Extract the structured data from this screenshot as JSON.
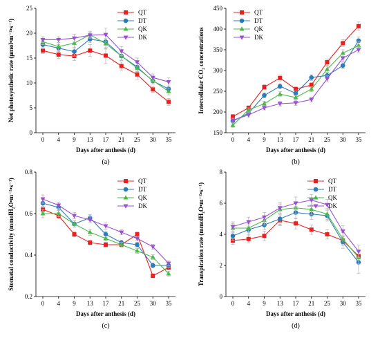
{
  "colors": {
    "QT": "#e8201e",
    "DT": "#2b7bba",
    "QK": "#4cb848",
    "DK": "#9b4fd1",
    "error": "#b8b8b8"
  },
  "chart_data": [
    {
      "id": "a",
      "type": "line",
      "panel_label": "(a)",
      "xlabel": "Days after anthesis (d)",
      "ylabel": "Net photosynthetic rate (μmol•m⁻²•s⁻¹)",
      "categories": [
        "0",
        "4",
        "9",
        "13",
        "17",
        "21",
        "25",
        "30",
        "35"
      ],
      "ylim": [
        0,
        25
      ],
      "yticks": [
        "0",
        "5",
        "10",
        "15",
        "20",
        "25"
      ],
      "legend_position": "top-right",
      "grid": false,
      "series": [
        {
          "name": "QT",
          "marker": "square",
          "values": [
            16.5,
            15.7,
            15.4,
            16.5,
            15.5,
            13.4,
            11.7,
            8.7,
            6.2
          ],
          "err": [
            0.6,
            0.8,
            0.9,
            1.2,
            1.6,
            0.8,
            0.9,
            0.6,
            0.7
          ]
        },
        {
          "name": "DT",
          "marker": "circle",
          "values": [
            17.7,
            17.0,
            16.3,
            18.8,
            18.3,
            15.4,
            13.2,
            10.4,
            8.8
          ],
          "err": [
            0.8,
            0.7,
            0.9,
            0.7,
            1.5,
            0.8,
            0.9,
            0.6,
            0.6
          ]
        },
        {
          "name": "QK",
          "marker": "triangle-up",
          "values": [
            18.3,
            17.3,
            18.0,
            19.7,
            17.9,
            15.4,
            13.0,
            10.5,
            8.3
          ],
          "err": [
            0.6,
            0.8,
            1.0,
            0.7,
            1.0,
            0.9,
            0.8,
            0.7,
            0.7
          ]
        },
        {
          "name": "DK",
          "marker": "triangle-down",
          "values": [
            18.7,
            18.7,
            19.0,
            19.6,
            19.7,
            16.4,
            14.2,
            11.1,
            10.2
          ],
          "err": [
            0.6,
            0.6,
            0.8,
            0.6,
            1.3,
            0.9,
            0.8,
            0.7,
            0.8
          ]
        }
      ]
    },
    {
      "id": "b",
      "type": "line",
      "panel_label": "(b)",
      "xlabel": "Days after anthesis (d)",
      "ylabel": "Intercellular CO₂ concentrations",
      "categories": [
        "0",
        "4",
        "9",
        "13",
        "17",
        "21",
        "25",
        "30",
        "35"
      ],
      "ylim": [
        150,
        450
      ],
      "yticks": [
        "150",
        "200",
        "250",
        "300",
        "350",
        "400",
        "450"
      ],
      "legend_position": "top-left",
      "grid": false,
      "series": [
        {
          "name": "QT",
          "marker": "square",
          "values": [
            189,
            210,
            260,
            282,
            255,
            265,
            320,
            366,
            407
          ],
          "err": [
            5,
            5,
            6,
            7,
            6,
            6,
            8,
            8,
            10
          ]
        },
        {
          "name": "DT",
          "marker": "circle",
          "values": [
            178,
            197,
            240,
            262,
            245,
            283,
            288,
            312,
            372
          ],
          "err": [
            5,
            5,
            6,
            6,
            6,
            7,
            7,
            8,
            9
          ]
        },
        {
          "name": "QK",
          "marker": "triangle-up",
          "values": [
            168,
            205,
            220,
            243,
            235,
            255,
            303,
            342,
            360
          ],
          "err": [
            5,
            5,
            6,
            6,
            6,
            6,
            7,
            8,
            9
          ]
        },
        {
          "name": "DK",
          "marker": "triangle-down",
          "values": [
            180,
            193,
            210,
            220,
            222,
            230,
            280,
            330,
            350
          ],
          "err": [
            5,
            5,
            5,
            6,
            6,
            6,
            7,
            8,
            8
          ]
        }
      ]
    },
    {
      "id": "c",
      "type": "line",
      "panel_label": "(c)",
      "xlabel": "Days after anthesis (d)",
      "ylabel": "Stomatal conductivity (mmolH₂O•m⁻²•s⁻¹)",
      "categories": [
        "0",
        "4",
        "9",
        "13",
        "17",
        "21",
        "25",
        "30",
        "35"
      ],
      "ylim": [
        0.2,
        0.8
      ],
      "yticks": [
        "0.2",
        "0.4",
        "0.6",
        "0.8"
      ],
      "legend_position": "top-right",
      "grid": false,
      "series": [
        {
          "name": "QT",
          "marker": "square",
          "values": [
            0.62,
            0.59,
            0.5,
            0.46,
            0.45,
            0.45,
            0.5,
            0.3,
            0.34
          ],
          "err": [
            0.015,
            0.015,
            0.012,
            0.012,
            0.012,
            0.012,
            0.012,
            0.01,
            0.012
          ]
        },
        {
          "name": "DT",
          "marker": "circle",
          "values": [
            0.65,
            0.63,
            0.55,
            0.58,
            0.5,
            0.46,
            0.45,
            0.35,
            0.35
          ],
          "err": [
            0.02,
            0.015,
            0.015,
            0.015,
            0.015,
            0.012,
            0.012,
            0.012,
            0.012
          ]
        },
        {
          "name": "QK",
          "marker": "triangle-up",
          "values": [
            0.6,
            0.6,
            0.55,
            0.51,
            0.48,
            0.45,
            0.42,
            0.39,
            0.31
          ],
          "err": [
            0.02,
            0.015,
            0.015,
            0.015,
            0.012,
            0.012,
            0.012,
            0.012,
            0.012
          ]
        },
        {
          "name": "DK",
          "marker": "triangle-down",
          "values": [
            0.67,
            0.64,
            0.59,
            0.57,
            0.54,
            0.51,
            0.48,
            0.44,
            0.36
          ],
          "err": [
            0.02,
            0.015,
            0.015,
            0.015,
            0.015,
            0.012,
            0.012,
            0.012,
            0.012
          ]
        }
      ]
    },
    {
      "id": "d",
      "type": "line",
      "panel_label": "(d)",
      "xlabel": "Days after anthesis (d)",
      "ylabel": "Transpiration rate (mmolH₂O•m⁻²•s⁻¹)",
      "categories": [
        "0",
        "4",
        "9",
        "13",
        "17",
        "21",
        "25",
        "30",
        "35"
      ],
      "ylim": [
        0,
        8
      ],
      "yticks": [
        "0",
        "2",
        "4",
        "6",
        "8"
      ],
      "legend_position": "top-right",
      "grid": false,
      "series": [
        {
          "name": "QT",
          "marker": "square",
          "values": [
            3.6,
            3.7,
            3.9,
            4.9,
            4.7,
            4.3,
            4.0,
            3.6,
            2.6
          ],
          "err": [
            0.25,
            0.25,
            0.3,
            0.35,
            0.35,
            0.3,
            0.3,
            0.3,
            0.3
          ]
        },
        {
          "name": "DT",
          "marker": "circle",
          "values": [
            3.9,
            4.3,
            4.6,
            5.0,
            5.4,
            5.3,
            5.2,
            3.5,
            2.2
          ],
          "err": [
            0.3,
            0.3,
            0.3,
            0.35,
            0.4,
            0.35,
            0.35,
            0.4,
            0.7
          ]
        },
        {
          "name": "QK",
          "marker": "triangle-up",
          "values": [
            4.4,
            4.4,
            4.9,
            5.6,
            5.7,
            5.6,
            5.3,
            3.7,
            2.5
          ],
          "err": [
            0.3,
            0.3,
            0.3,
            0.35,
            0.4,
            0.35,
            0.35,
            0.4,
            0.4
          ]
        },
        {
          "name": "DK",
          "marker": "triangle-down",
          "values": [
            4.5,
            4.8,
            5.1,
            5.7,
            6.0,
            6.2,
            5.9,
            4.2,
            2.9
          ],
          "err": [
            0.3,
            0.3,
            0.3,
            0.35,
            0.4,
            0.35,
            0.35,
            0.35,
            0.4
          ]
        }
      ]
    }
  ]
}
